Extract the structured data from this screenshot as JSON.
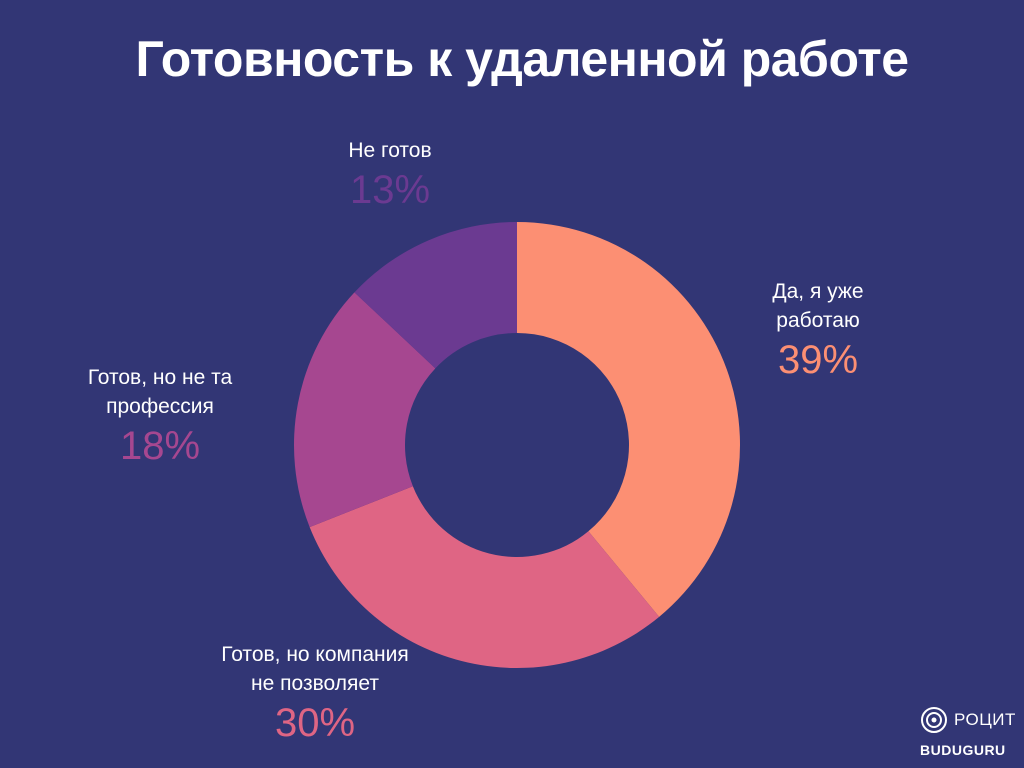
{
  "title": "Готовность к удаленной работе",
  "chart_data": {
    "type": "pie",
    "title": "Готовность к удаленной работе",
    "slices": [
      {
        "label_line1": "Да, я уже",
        "label_line2": "работаю",
        "value": 39,
        "value_label": "39%",
        "color": "#fc8f73"
      },
      {
        "label_line1": "Готов, но компания",
        "label_line2": "не позволяет",
        "value": 30,
        "value_label": "30%",
        "color": "#df6584"
      },
      {
        "label_line1": "Готов, но не та",
        "label_line2": "профессия",
        "value": 18,
        "value_label": "18%",
        "color": "#a64790"
      },
      {
        "label_line1": "Не готов",
        "label_line2": "",
        "value": 13,
        "value_label": "13%",
        "color": "#6b3a91"
      }
    ]
  },
  "logo": {
    "name": "РОЦИТ",
    "sub": "BUDUGURU",
    "icon": "target-circles-icon"
  },
  "colors": {
    "background": "#323675",
    "text": "#ffffff"
  }
}
